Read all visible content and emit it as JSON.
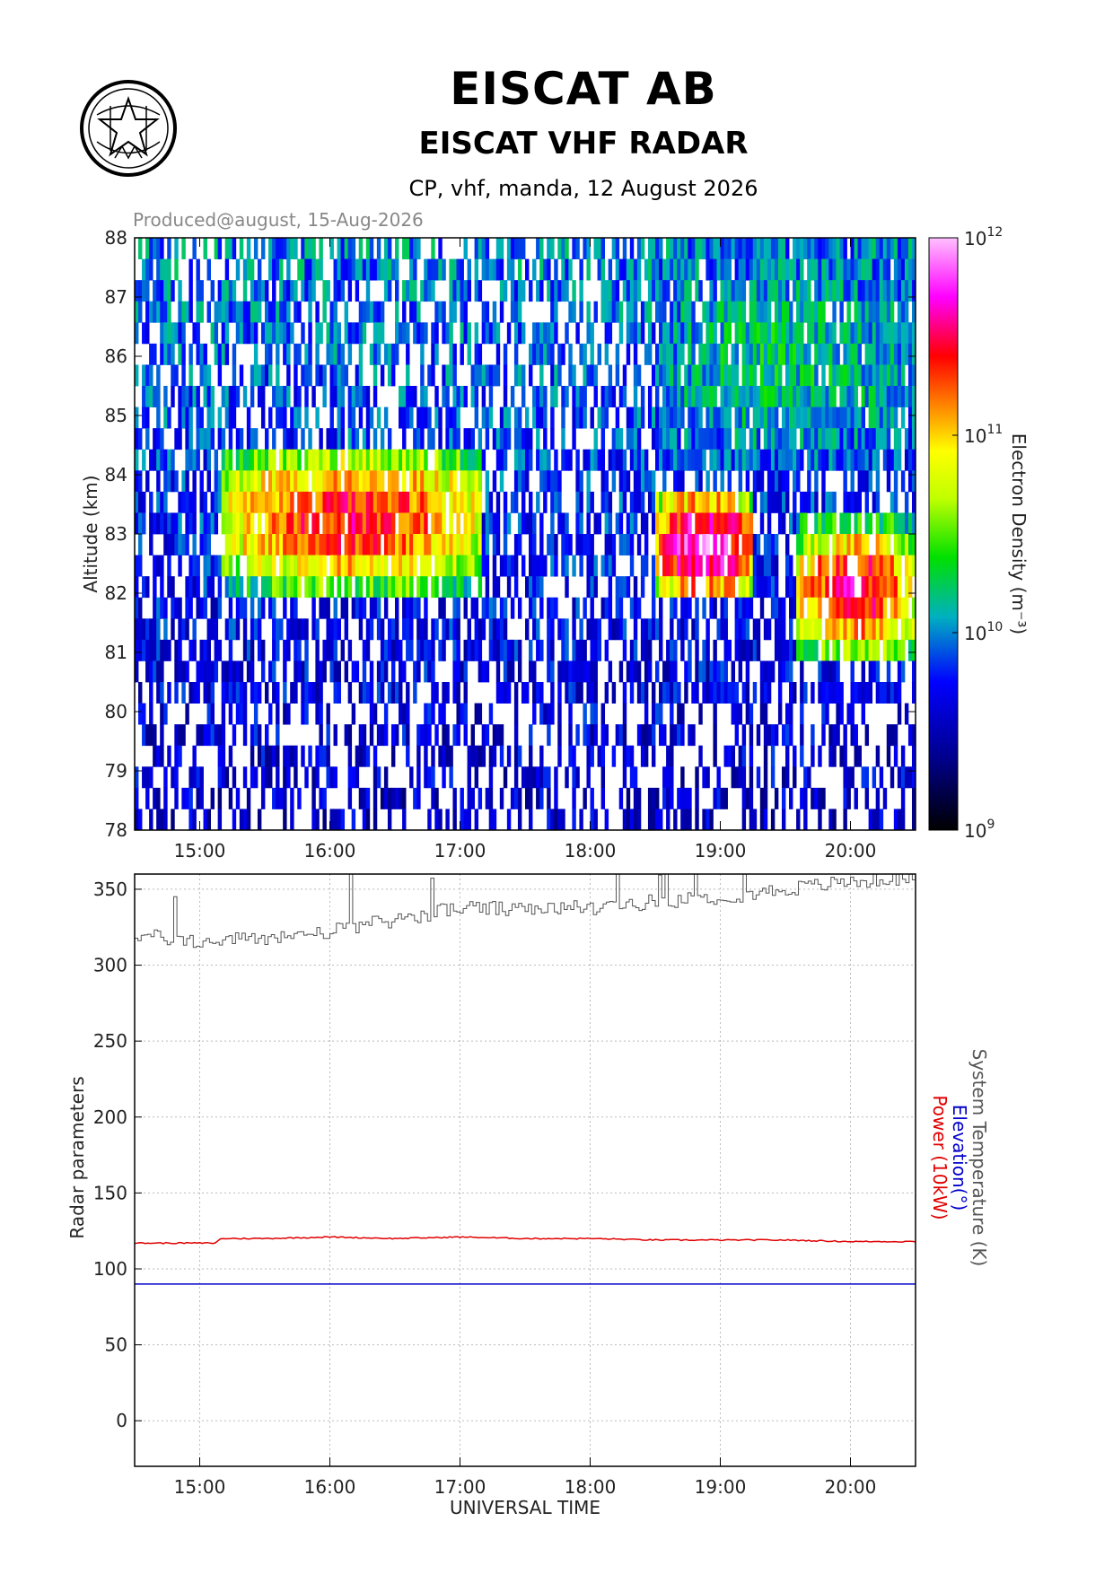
{
  "header": {
    "title": "EISCAT AB",
    "subtitle": "EISCAT VHF RADAR",
    "run_line": "CP, vhf, manda, 12 August 2026",
    "produced": "Produced@august, 15-Aug-2026"
  },
  "colors": {
    "power": "#e00000",
    "elevation": "#0000cc",
    "system_temperature": "#555555",
    "grid": "#bbbbbb"
  },
  "chart_data": [
    {
      "type": "heatmap",
      "ylabel": "Altitude (km)",
      "ylim": [
        78,
        88
      ],
      "y_ticks": [
        "78",
        "79",
        "80",
        "81",
        "82",
        "83",
        "84",
        "85",
        "86",
        "87",
        "88"
      ],
      "x_range": [
        "14:30",
        "20:30"
      ],
      "x_ticks": [
        "15:00",
        "16:00",
        "17:00",
        "18:00",
        "19:00",
        "20:00"
      ],
      "colorbar": {
        "label": "Electron Density (m⁻³)",
        "scale": "log",
        "range": [
          1000000000.0,
          1000000000000.0
        ],
        "ticks": [
          {
            "base": "10",
            "exp": "9"
          },
          {
            "base": "10",
            "exp": "10"
          },
          {
            "base": "10",
            "exp": "11"
          },
          {
            "base": "10",
            "exp": "12"
          }
        ],
        "colors": [
          "#000000",
          "#0000ff",
          "#00b0c0",
          "#00e000",
          "#ffff00",
          "#ff8000",
          "#ff0000",
          "#ff00ff",
          "#ffc0ff"
        ]
      },
      "features": [
        {
          "time": [
            "15:10",
            "17:10"
          ],
          "altitude": [
            82.0,
            84.5
          ],
          "peak_log10": 11.4
        },
        {
          "time": [
            "18:30",
            "19:15"
          ],
          "altitude": [
            81.8,
            83.8
          ],
          "peak_log10": 11.8
        },
        {
          "time": [
            "19:35",
            "20:30"
          ],
          "altitude": [
            80.9,
            83.2
          ],
          "peak_log10": 11.5
        },
        {
          "time": [
            "18:30",
            "20:30"
          ],
          "altitude": [
            84.0,
            88.0
          ],
          "peak_log10": 10.2
        }
      ]
    },
    {
      "type": "line",
      "ylabel": "Radar parameters",
      "xlabel": "UNIVERSAL TIME",
      "ylim": [
        -30,
        360
      ],
      "y_ticks": [
        "0",
        "50",
        "100",
        "150",
        "200",
        "250",
        "300",
        "350"
      ],
      "x_range": [
        "14:30",
        "20:30"
      ],
      "x_ticks": [
        "15:00",
        "16:00",
        "17:00",
        "18:00",
        "19:00",
        "20:00"
      ],
      "series": [
        {
          "name": "System Temperature (K)",
          "x": [
            "14:30",
            "15:00",
            "15:30",
            "16:00",
            "16:30",
            "17:00",
            "17:30",
            "18:00",
            "18:30",
            "19:00",
            "19:30",
            "20:00",
            "20:30"
          ],
          "values": [
            320,
            315,
            318,
            322,
            330,
            338,
            336,
            338,
            342,
            345,
            350,
            355,
            358
          ]
        },
        {
          "name": "Elevation(°)",
          "x": [
            "14:30",
            "20:30"
          ],
          "values": [
            90,
            90
          ]
        },
        {
          "name": "Power (10kW)",
          "x": [
            "14:30",
            "15:00",
            "15:07",
            "15:10",
            "15:30",
            "16:00",
            "16:30",
            "17:00",
            "17:30",
            "18:00",
            "18:30",
            "19:00",
            "19:30",
            "20:00",
            "20:30"
          ],
          "values": [
            117,
            117,
            117,
            120,
            120,
            121,
            120,
            121,
            120,
            120,
            119,
            119,
            119,
            118,
            118
          ]
        }
      ]
    }
  ]
}
